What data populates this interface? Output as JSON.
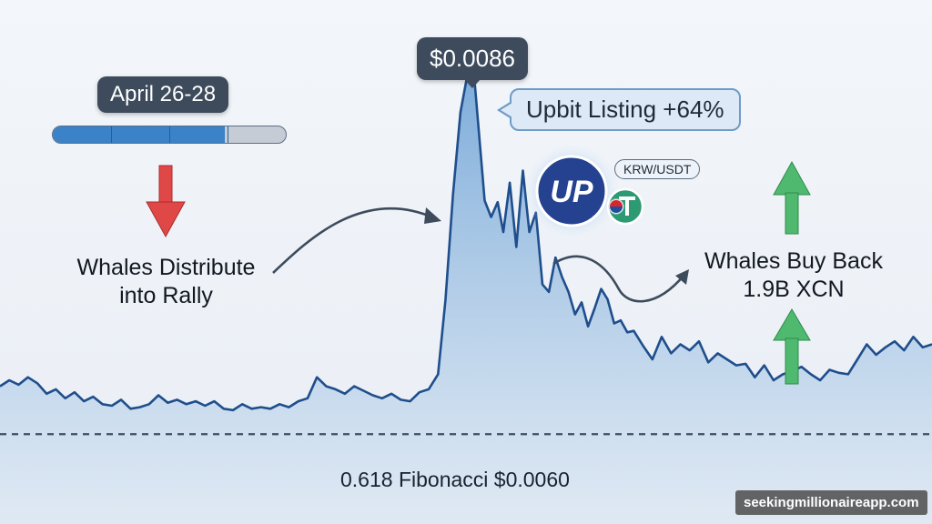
{
  "annotations": {
    "date_range": "April 26-28",
    "peak_price": "$0.0086",
    "listing_callout": "Upbit Listing +64%",
    "left_label": [
      "Whales Distribute",
      "into Rally"
    ],
    "right_label": [
      "Whales Buy Back",
      "1.9B XCN"
    ],
    "pair_badge": "KRW/USDT",
    "exchange_logo_text": "UP",
    "fib_level": "0.618 Fibonacci $0.0060"
  },
  "progress": {
    "fraction": 0.74,
    "segments": 4
  },
  "watermark": "seekingmillionaireapp.com",
  "colors": {
    "line": "#1f4e8c",
    "area_top": "#6fa3d6",
    "area_bottom": "#dbe7f3",
    "down_arrow": "#e04848",
    "up_arrow": "#4fba6f",
    "logo_bg": "#24428f",
    "tether": "#2e9a73"
  },
  "icons": {
    "logo": "upbit-logo-icon",
    "token": "tether-icon",
    "flag": "korea-flag-icon"
  },
  "chart_data": {
    "type": "area",
    "title": "",
    "xlabel": "",
    "ylabel": "",
    "ylim": [
      0.0054,
      0.0089
    ],
    "xlim": [
      0,
      100
    ],
    "grid": false,
    "legend": "none",
    "reference_line": {
      "value": 0.006,
      "label": "0.618 Fibonacci $0.0060",
      "style": "dashed"
    },
    "peak": {
      "x": 50.6,
      "y": 0.0086
    },
    "series": [
      {
        "x": [
          0,
          1,
          2,
          3,
          4,
          5,
          6,
          7,
          8,
          9,
          10,
          11,
          12,
          13,
          14,
          15,
          16,
          17,
          18,
          19,
          20,
          21,
          22,
          23,
          24,
          25,
          26,
          27,
          28,
          29,
          30,
          31,
          32,
          33,
          34,
          35,
          36,
          37,
          38,
          39,
          40,
          41,
          42,
          43,
          44,
          45,
          46,
          47,
          47.8,
          48.6,
          49.4,
          50.0,
          50.6,
          51.3,
          52.0,
          52.7,
          53.4,
          54.0,
          54.7,
          55.4,
          56.1,
          56.8,
          57.5,
          58.2,
          58.9,
          59.6,
          60.3,
          61.0,
          61.7,
          62.4,
          63.1,
          63.8,
          64.5,
          65.2,
          65.9,
          66.6,
          67.3,
          68,
          69,
          70,
          71,
          72,
          73,
          74,
          75,
          76,
          77,
          78,
          79,
          80,
          81,
          82,
          83,
          84,
          85,
          86,
          87,
          88,
          89,
          90,
          91,
          92,
          93,
          94,
          95,
          96,
          97,
          98,
          99,
          100
        ],
        "values": [
          0.00632,
          0.00636,
          0.00633,
          0.00638,
          0.00634,
          0.00627,
          0.0063,
          0.00624,
          0.00628,
          0.00622,
          0.00625,
          0.0062,
          0.00619,
          0.00623,
          0.00617,
          0.00618,
          0.0062,
          0.00626,
          0.00621,
          0.00623,
          0.0062,
          0.00622,
          0.00619,
          0.00622,
          0.00617,
          0.00616,
          0.0062,
          0.00617,
          0.00618,
          0.00617,
          0.0062,
          0.00618,
          0.00622,
          0.00624,
          0.00638,
          0.00632,
          0.0063,
          0.00627,
          0.00632,
          0.00629,
          0.00626,
          0.00624,
          0.00627,
          0.00623,
          0.00622,
          0.00628,
          0.0063,
          0.0064,
          0.0069,
          0.0076,
          0.00815,
          0.00835,
          0.0086,
          0.00808,
          0.00756,
          0.00745,
          0.00755,
          0.00735,
          0.00768,
          0.00725,
          0.00776,
          0.00735,
          0.00748,
          0.007,
          0.00695,
          0.00718,
          0.00705,
          0.00695,
          0.0068,
          0.00688,
          0.00672,
          0.00684,
          0.00697,
          0.0069,
          0.00674,
          0.00676,
          0.00668,
          0.00669,
          0.00659,
          0.0065,
          0.00665,
          0.00654,
          0.0066,
          0.00656,
          0.00662,
          0.00648,
          0.00654,
          0.0065,
          0.00646,
          0.00647,
          0.00638,
          0.00646,
          0.00636,
          0.0064,
          0.00642,
          0.00645,
          0.0064,
          0.00636,
          0.00643,
          0.00641,
          0.0064,
          0.0065,
          0.0066,
          0.00653,
          0.00658,
          0.00662,
          0.00656,
          0.00665,
          0.00658,
          0.0066
        ]
      }
    ]
  }
}
